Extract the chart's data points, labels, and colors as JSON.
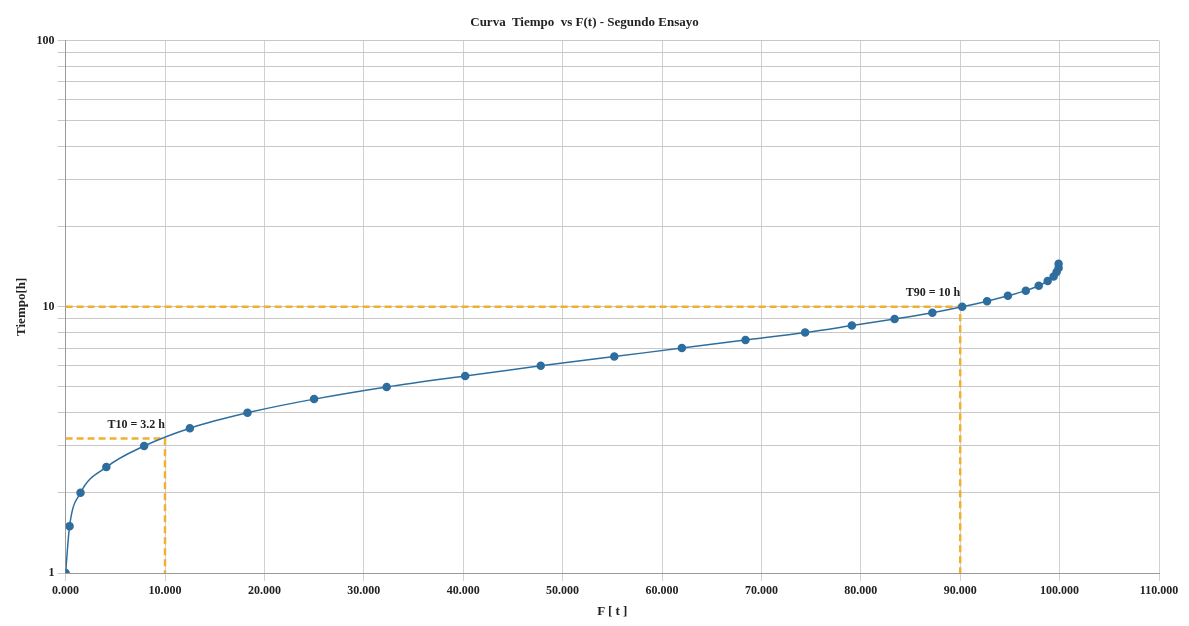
{
  "chart_data": {
    "type": "line",
    "title": "Curva  Tiempo  vs F(t) - Segundo Ensayo",
    "xlabel": "F [ t ]",
    "ylabel": "Tiempo[h]",
    "log": "y",
    "grid": true,
    "legend": false,
    "marker": "circle",
    "line_style": "solid",
    "xlim": [
      0,
      110
    ],
    "ylim": [
      1,
      100
    ],
    "xticks": [
      {
        "value": 0,
        "label": "0.000"
      },
      {
        "value": 10,
        "label": "10.000"
      },
      {
        "value": 20,
        "label": "20.000"
      },
      {
        "value": 30,
        "label": "30.000"
      },
      {
        "value": 40,
        "label": "40.000"
      },
      {
        "value": 50,
        "label": "50.000"
      },
      {
        "value": 60,
        "label": "60.000"
      },
      {
        "value": 70,
        "label": "70.000"
      },
      {
        "value": 80,
        "label": "80.000"
      },
      {
        "value": 90,
        "label": "90.000"
      },
      {
        "value": 100,
        "label": "100.000"
      },
      {
        "value": 110,
        "label": "110.000"
      }
    ],
    "yticks": [
      1,
      {
        "value": 2,
        "label": null
      },
      {
        "value": 3,
        "label": null
      },
      {
        "value": 4,
        "label": null
      },
      {
        "value": 5,
        "label": null
      },
      {
        "value": 6,
        "label": null
      },
      {
        "value": 7,
        "label": null
      },
      {
        "value": 8,
        "label": null
      },
      {
        "value": 9,
        "label": null
      },
      10,
      {
        "value": 20,
        "label": null
      },
      {
        "value": 30,
        "label": null
      },
      {
        "value": 40,
        "label": null
      },
      {
        "value": 50,
        "label": null
      },
      {
        "value": 60,
        "label": null
      },
      {
        "value": 70,
        "label": null
      },
      {
        "value": 80,
        "label": null
      },
      {
        "value": 90,
        "label": null
      },
      100
    ],
    "series": [
      {
        "color": "#2e6e9e",
        "x": [
          0,
          0.4,
          1.5,
          4.1,
          7.9,
          12.5,
          18.3,
          25,
          32.3,
          40.2,
          47.8,
          55.2,
          62,
          68.4,
          74.4,
          79.1,
          83.4,
          87.2,
          90.2,
          92.7,
          94.8,
          96.6,
          97.9,
          98.8,
          99.4,
          99.7,
          99.9,
          99.9
        ],
        "values": [
          1,
          1.5,
          2,
          2.5,
          3,
          3.5,
          4,
          4.5,
          5,
          5.5,
          6,
          6.5,
          7,
          7.5,
          8,
          8.5,
          9,
          9.5,
          10,
          10.5,
          11,
          11.5,
          12,
          12.5,
          13,
          13.5,
          14,
          14.5
        ]
      },
      {
        "type": "line",
        "color": "#f0b030",
        "line_style": "dashed",
        "marker": "none",
        "x": [
          0,
          10,
          10
        ],
        "values": [
          3.2,
          3.2,
          1
        ]
      },
      {
        "type": "line",
        "color": "#f0b030",
        "line_style": "dashed",
        "marker": "none",
        "x": [
          0,
          90,
          90
        ],
        "values": [
          10,
          10,
          1
        ]
      }
    ],
    "annotations": [
      {
        "text": "T10 = 3.2 h",
        "x": 10,
        "y": 3.2
      },
      {
        "text": "T90 = 10 h",
        "x": 90,
        "y": 10
      }
    ]
  }
}
